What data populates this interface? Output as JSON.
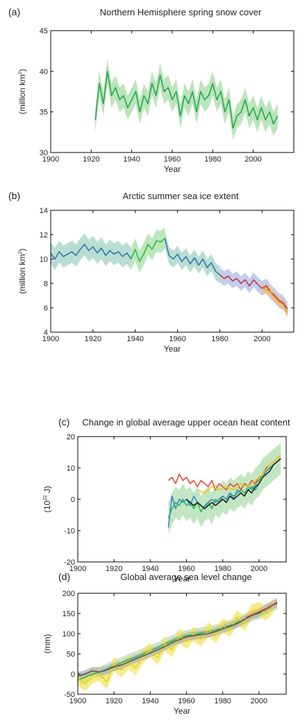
{
  "chart_data": [
    {
      "type": "line",
      "panel_label": "(a)",
      "title": "Northern Hemisphere spring snow cover",
      "xlabel": "Year",
      "ylabel_main": "(million km",
      "ylabel_sup": "2",
      "ylabel_tail": ")",
      "xlim": [
        1900,
        2020
      ],
      "ylim": [
        30,
        45
      ],
      "xticks": [
        1900,
        1920,
        1940,
        1960,
        1980,
        2000
      ],
      "yticks": [
        30,
        35,
        40,
        45
      ],
      "grid": false,
      "series": [
        {
          "color": "#1fa84a",
          "band_color": "#9fd89f",
          "band": 1.5,
          "x": [
            1922,
            1924,
            1926,
            1928,
            1930,
            1932,
            1934,
            1936,
            1938,
            1940,
            1942,
            1944,
            1946,
            1948,
            1950,
            1952,
            1954,
            1956,
            1958,
            1960,
            1962,
            1964,
            1966,
            1968,
            1970,
            1972,
            1974,
            1976,
            1978,
            1980,
            1982,
            1984,
            1986,
            1988,
            1990,
            1992,
            1994,
            1996,
            1998,
            2000,
            2002,
            2004,
            2006,
            2008,
            2010,
            2012
          ],
          "y": [
            34.0,
            38.5,
            36.0,
            40.0,
            37.0,
            38.0,
            36.5,
            37.0,
            35.5,
            36.5,
            37.5,
            35.0,
            37.0,
            36.0,
            38.5,
            37.0,
            39.5,
            37.5,
            38.0,
            36.5,
            37.5,
            34.5,
            37.0,
            36.0,
            37.5,
            35.0,
            37.5,
            36.5,
            37.0,
            38.5,
            36.5,
            37.5,
            35.0,
            36.5,
            33.0,
            34.5,
            35.0,
            36.5,
            34.5,
            35.5,
            34.0,
            35.5,
            34.0,
            35.0,
            33.5,
            34.5
          ]
        }
      ]
    },
    {
      "type": "line",
      "panel_label": "(b)",
      "title": "Arctic summer sea ice extent",
      "xlabel": "Year",
      "ylabel_main": "(million km",
      "ylabel_sup": "2",
      "ylabel_tail": ")",
      "xlim": [
        1900,
        2015
      ],
      "ylim": [
        4,
        14
      ],
      "xticks": [
        1900,
        1920,
        1940,
        1960,
        1980,
        2000
      ],
      "yticks": [
        4,
        6,
        8,
        10,
        12,
        14
      ],
      "grid": false,
      "series": [
        {
          "color": "#2a7ab0",
          "band_color": "#9ccfc0",
          "band": 0.9,
          "x": [
            1900,
            1902,
            1904,
            1906,
            1908,
            1910,
            1912,
            1914,
            1916,
            1918,
            1920,
            1922,
            1924,
            1926,
            1928,
            1930,
            1932,
            1934,
            1936,
            1938
          ],
          "y": [
            10.5,
            10.0,
            10.6,
            10.2,
            10.4,
            10.6,
            10.3,
            10.8,
            11.2,
            10.7,
            11.0,
            10.5,
            10.9,
            10.3,
            10.7,
            10.4,
            10.6,
            10.2,
            10.5,
            10.0
          ]
        },
        {
          "color": "#2cb84a",
          "band_color": "#9fdca0",
          "band": 0.9,
          "x": [
            1938,
            1940,
            1942,
            1944,
            1946,
            1948,
            1950,
            1952,
            1954
          ],
          "y": [
            10.0,
            10.8,
            9.8,
            10.4,
            11.2,
            10.8,
            11.5,
            11.4,
            11.7
          ]
        },
        {
          "color": "#2a7ab0",
          "band_color": "#9ccfc0",
          "band": 0.7,
          "x": [
            1954,
            1956,
            1958,
            1960,
            1962,
            1964,
            1966,
            1968,
            1970,
            1972,
            1974,
            1976,
            1978,
            1980
          ],
          "y": [
            11.7,
            10.3,
            10.0,
            10.4,
            9.8,
            10.2,
            9.6,
            10.1,
            9.5,
            10.0,
            9.3,
            9.7,
            9.0,
            8.7
          ]
        },
        {
          "color": "#c23a3a",
          "band_color": "#a9b8e8",
          "band": 0.6,
          "x": [
            1980,
            1982,
            1984,
            1986,
            1988,
            1990,
            1992,
            1994,
            1996,
            1998,
            2000,
            2002,
            2004,
            2006,
            2008,
            2010,
            2012
          ],
          "y": [
            8.7,
            8.4,
            8.6,
            8.2,
            8.4,
            8.0,
            8.3,
            7.8,
            8.3,
            7.9,
            7.6,
            7.8,
            7.3,
            7.0,
            6.6,
            6.4,
            5.9
          ]
        },
        {
          "color": "#e8962a",
          "band_color": "#f2c070",
          "band": 0.4,
          "x": [
            2000,
            2002,
            2004,
            2006,
            2008,
            2010,
            2012
          ],
          "y": [
            7.6,
            7.5,
            7.3,
            6.8,
            6.5,
            6.3,
            5.6
          ]
        }
      ]
    },
    {
      "type": "line",
      "panel_label": "(c)",
      "title": "Change in global average upper ocean heat content",
      "xlabel": "Year",
      "ylabel_main": "(10",
      "ylabel_sup": "22",
      "ylabel_tail": " J)",
      "xlim": [
        1900,
        2015
      ],
      "ylim": [
        -20,
        20
      ],
      "xticks": [
        1900,
        1920,
        1940,
        1960,
        1980,
        2000
      ],
      "yticks": [
        -20,
        -10,
        0,
        10,
        20
      ],
      "grid": false,
      "series": [
        {
          "color": "#2cb84a",
          "band_color": "#a8dca8",
          "band": 5,
          "x": [
            1950,
            1952,
            1954,
            1956,
            1958,
            1960,
            1962,
            1964,
            1966,
            1968,
            1970,
            1972,
            1974,
            1976,
            1978,
            1980,
            1982,
            1984,
            1986,
            1988,
            1990,
            1992,
            1994,
            1996,
            1998,
            2000,
            2002,
            2004,
            2006,
            2008,
            2010,
            2012
          ],
          "y": [
            -6,
            -3,
            -1,
            -2,
            0,
            -2,
            -1,
            -3,
            -1,
            -4,
            -2,
            -1,
            -3,
            0,
            -1,
            1,
            0,
            2,
            1,
            2,
            3,
            2,
            4,
            3,
            5,
            6,
            8,
            9,
            10,
            11,
            12,
            13
          ]
        },
        {
          "color": "#e04a3a",
          "band_color": "none",
          "band": 0,
          "x": [
            1950,
            1952,
            1954,
            1956,
            1958,
            1960,
            1962,
            1964,
            1966,
            1968,
            1970,
            1972,
            1974,
            1976,
            1978,
            1980,
            1982,
            1984,
            1986,
            1988,
            1990,
            1992,
            1994,
            1996,
            1998,
            2000,
            2002,
            2004,
            2006,
            2008,
            2010,
            2012
          ],
          "y": [
            6,
            7,
            5,
            8,
            6,
            7,
            5,
            6,
            4,
            6,
            5,
            4,
            6,
            3,
            5,
            4,
            3,
            5,
            4,
            5,
            3,
            5,
            4,
            6,
            5,
            7,
            8,
            10,
            11,
            12,
            13,
            14
          ]
        },
        {
          "color": "#e8c81a",
          "band_color": "none",
          "band": 0,
          "x": [
            1966,
            1970,
            1974,
            1978,
            1982,
            1986,
            1990,
            1994,
            1998,
            2002,
            2006,
            2010,
            2012
          ],
          "y": [
            3,
            2,
            4,
            3,
            4,
            3,
            5,
            4,
            6,
            8,
            11,
            13,
            14
          ]
        },
        {
          "color": "#3a8ac8",
          "band_color": "none",
          "band": 0,
          "x": [
            1950,
            1952,
            1954,
            1956,
            1958,
            1960,
            1962,
            1964,
            1966,
            1968,
            1970,
            1972,
            1974,
            1976,
            1978,
            1980,
            1982,
            1984,
            1986,
            1988,
            1990,
            1992,
            1994,
            1996,
            1998,
            2000,
            2002,
            2004,
            2006,
            2008,
            2010,
            2012
          ],
          "y": [
            -9,
            1,
            -3,
            0,
            -1,
            0,
            -2,
            1,
            -1,
            -2,
            -3,
            -1,
            0,
            -1,
            0,
            1,
            0,
            2,
            0,
            3,
            2,
            1,
            3,
            4,
            3,
            5,
            7,
            9,
            10,
            11,
            12,
            13
          ]
        },
        {
          "color": "#222222",
          "band_color": "none",
          "band": 0,
          "x": [
            1960,
            1962,
            1964,
            1966,
            1968,
            1970,
            1972,
            1974,
            1976,
            1978,
            1980,
            1982,
            1984,
            1986,
            1988,
            1990,
            1992,
            1994,
            1996,
            1998,
            2000,
            2002,
            2004,
            2006,
            2008,
            2010,
            2012
          ],
          "y": [
            0,
            -1,
            -2,
            -1,
            -2,
            -3,
            -2,
            -1,
            -2,
            -1,
            0,
            -1,
            1,
            0,
            1,
            2,
            1,
            3,
            2,
            4,
            5,
            7,
            8,
            9,
            11,
            12,
            13
          ]
        }
      ]
    },
    {
      "type": "line",
      "panel_label": "(d)",
      "title": "Global average sea level change",
      "xlabel": "Year",
      "ylabel_main": "(mm)",
      "ylabel_sup": "",
      "ylabel_tail": "",
      "xlim": [
        1900,
        2015
      ],
      "ylim": [
        -50,
        200
      ],
      "xticks": [
        1900,
        1920,
        1940,
        1960,
        1980,
        2000
      ],
      "yticks": [
        -50,
        0,
        50,
        100,
        150,
        200
      ],
      "grid": false,
      "series": [
        {
          "color": "#2cb84a",
          "band_color": "#b8d8c0",
          "band": 14,
          "x": [
            1900,
            1904,
            1908,
            1912,
            1916,
            1920,
            1924,
            1928,
            1932,
            1936,
            1940,
            1944,
            1948,
            1952,
            1956,
            1960,
            1964,
            1968,
            1972,
            1976,
            1980,
            1984,
            1988,
            1992,
            1996,
            2000,
            2004,
            2008,
            2010
          ],
          "y": [
            -15,
            -8,
            0,
            5,
            12,
            20,
            28,
            36,
            42,
            50,
            58,
            65,
            75,
            82,
            90,
            95,
            98,
            102,
            105,
            108,
            115,
            120,
            128,
            135,
            145,
            150,
            160,
            170,
            175
          ]
        },
        {
          "color": "#e8d21a",
          "band_color": "#f2e35a",
          "band": 18,
          "x": [
            1900,
            1904,
            1908,
            1912,
            1916,
            1920,
            1924,
            1928,
            1932,
            1936,
            1940,
            1944,
            1948,
            1952,
            1956,
            1960,
            1964,
            1968,
            1972,
            1976,
            1980,
            1984,
            1988,
            1992,
            1996,
            2000,
            2004,
            2008
          ],
          "y": [
            -10,
            -25,
            -5,
            0,
            -20,
            25,
            10,
            30,
            15,
            45,
            60,
            40,
            75,
            60,
            95,
            80,
            100,
            85,
            110,
            95,
            120,
            110,
            140,
            125,
            155,
            160,
            150,
            170
          ]
        },
        {
          "color": "#555555",
          "band_color": "#b0b0b0",
          "band": 10,
          "x": [
            1900,
            1904,
            1908,
            1912,
            1916,
            1920,
            1924,
            1928,
            1932,
            1936,
            1940,
            1944,
            1948,
            1952,
            1956,
            1960,
            1964,
            1968,
            1972,
            1976,
            1980,
            1984,
            1988,
            1992,
            1996,
            2000,
            2004,
            2008,
            2010
          ],
          "y": [
            -5,
            0,
            8,
            5,
            10,
            18,
            22,
            30,
            38,
            45,
            52,
            60,
            68,
            78,
            85,
            92,
            95,
            98,
            100,
            105,
            112,
            118,
            125,
            135,
            145,
            152,
            162,
            172,
            176
          ]
        },
        {
          "color": "#d03a3a",
          "band_color": "none",
          "band": 0,
          "x": [
            1993,
            1996,
            1999,
            2002,
            2005,
            2008,
            2010
          ],
          "y": [
            140,
            146,
            152,
            158,
            164,
            172,
            178
          ]
        }
      ]
    }
  ]
}
